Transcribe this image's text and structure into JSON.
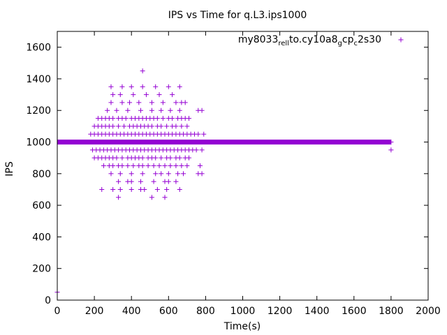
{
  "chart_data": {
    "type": "scatter",
    "title": "IPS vs Time for q.L3.ips1000",
    "xlabel": "Time(s)",
    "ylabel": "IPS",
    "xlim": [
      0,
      2000
    ],
    "ylim": [
      0,
      1700
    ],
    "x_ticks": [
      "0",
      "200",
      "400",
      "600",
      "800",
      "1000",
      "1200",
      "1400",
      "1600",
      "1800",
      "2000"
    ],
    "y_ticks": [
      "0",
      "200",
      "400",
      "600",
      "800",
      "1000",
      "1200",
      "1400",
      "1600"
    ],
    "grid": false,
    "legend_position": "top-right",
    "series": [
      {
        "name": "my8033_rel_lto.cy10a8_g cp_c 2s30",
        "legend_parts": [
          {
            "text": "my8033",
            "sub": false
          },
          {
            "text": "rel",
            "sub": true
          },
          {
            "text": "l",
            "sub": true
          },
          {
            "text": "to.cy10a8",
            "sub": false
          },
          {
            "text": "g",
            "sub": true
          },
          {
            "text": "cp",
            "sub": false
          },
          {
            "text": "c",
            "sub": true
          },
          {
            "text": "2s30",
            "sub": false
          }
        ],
        "color": "#9400d3",
        "marker": "plus",
        "baseline": {
          "x_start": 0,
          "x_end": 1800,
          "y": 1000
        },
        "points": [
          [
            0,
            50
          ],
          [
            1800,
            950
          ],
          [
            290,
            1350
          ],
          [
            350,
            1350
          ],
          [
            400,
            1350
          ],
          [
            460,
            1350
          ],
          [
            530,
            1350
          ],
          [
            600,
            1350
          ],
          [
            660,
            1350
          ],
          [
            460,
            1450
          ],
          [
            300,
            1300
          ],
          [
            340,
            1300
          ],
          [
            410,
            1300
          ],
          [
            480,
            1300
          ],
          [
            550,
            1300
          ],
          [
            620,
            1300
          ],
          [
            290,
            1250
          ],
          [
            350,
            1250
          ],
          [
            390,
            1250
          ],
          [
            440,
            1250
          ],
          [
            510,
            1250
          ],
          [
            570,
            1250
          ],
          [
            640,
            1250
          ],
          [
            670,
            1250
          ],
          [
            690,
            1250
          ],
          [
            270,
            1200
          ],
          [
            320,
            1200
          ],
          [
            380,
            1200
          ],
          [
            450,
            1200
          ],
          [
            510,
            1200
          ],
          [
            560,
            1200
          ],
          [
            610,
            1200
          ],
          [
            660,
            1200
          ],
          [
            760,
            1200
          ],
          [
            780,
            1200
          ],
          [
            220,
            1150
          ],
          [
            240,
            1150
          ],
          [
            260,
            1150
          ],
          [
            280,
            1150
          ],
          [
            300,
            1150
          ],
          [
            330,
            1150
          ],
          [
            350,
            1150
          ],
          [
            370,
            1150
          ],
          [
            400,
            1150
          ],
          [
            420,
            1150
          ],
          [
            440,
            1150
          ],
          [
            460,
            1150
          ],
          [
            480,
            1150
          ],
          [
            500,
            1150
          ],
          [
            520,
            1150
          ],
          [
            540,
            1150
          ],
          [
            570,
            1150
          ],
          [
            600,
            1150
          ],
          [
            620,
            1150
          ],
          [
            650,
            1150
          ],
          [
            670,
            1150
          ],
          [
            690,
            1150
          ],
          [
            710,
            1150
          ],
          [
            200,
            1100
          ],
          [
            220,
            1100
          ],
          [
            240,
            1100
          ],
          [
            260,
            1100
          ],
          [
            280,
            1100
          ],
          [
            300,
            1100
          ],
          [
            330,
            1100
          ],
          [
            360,
            1100
          ],
          [
            390,
            1100
          ],
          [
            410,
            1100
          ],
          [
            430,
            1100
          ],
          [
            450,
            1100
          ],
          [
            470,
            1100
          ],
          [
            490,
            1100
          ],
          [
            510,
            1100
          ],
          [
            540,
            1100
          ],
          [
            560,
            1100
          ],
          [
            590,
            1100
          ],
          [
            620,
            1100
          ],
          [
            640,
            1100
          ],
          [
            670,
            1100
          ],
          [
            700,
            1100
          ],
          [
            180,
            1050
          ],
          [
            200,
            1050
          ],
          [
            220,
            1050
          ],
          [
            240,
            1050
          ],
          [
            260,
            1050
          ],
          [
            280,
            1050
          ],
          [
            300,
            1050
          ],
          [
            320,
            1050
          ],
          [
            340,
            1050
          ],
          [
            360,
            1050
          ],
          [
            380,
            1050
          ],
          [
            400,
            1050
          ],
          [
            420,
            1050
          ],
          [
            440,
            1050
          ],
          [
            460,
            1050
          ],
          [
            480,
            1050
          ],
          [
            500,
            1050
          ],
          [
            520,
            1050
          ],
          [
            540,
            1050
          ],
          [
            560,
            1050
          ],
          [
            580,
            1050
          ],
          [
            600,
            1050
          ],
          [
            620,
            1050
          ],
          [
            640,
            1050
          ],
          [
            660,
            1050
          ],
          [
            680,
            1050
          ],
          [
            700,
            1050
          ],
          [
            720,
            1050
          ],
          [
            740,
            1050
          ],
          [
            760,
            1050
          ],
          [
            790,
            1050
          ],
          [
            190,
            950
          ],
          [
            210,
            950
          ],
          [
            230,
            950
          ],
          [
            250,
            950
          ],
          [
            270,
            950
          ],
          [
            290,
            950
          ],
          [
            310,
            950
          ],
          [
            330,
            950
          ],
          [
            350,
            950
          ],
          [
            370,
            950
          ],
          [
            390,
            950
          ],
          [
            410,
            950
          ],
          [
            430,
            950
          ],
          [
            450,
            950
          ],
          [
            470,
            950
          ],
          [
            490,
            950
          ],
          [
            510,
            950
          ],
          [
            530,
            950
          ],
          [
            550,
            950
          ],
          [
            570,
            950
          ],
          [
            590,
            950
          ],
          [
            610,
            950
          ],
          [
            630,
            950
          ],
          [
            650,
            950
          ],
          [
            670,
            950
          ],
          [
            690,
            950
          ],
          [
            710,
            950
          ],
          [
            730,
            950
          ],
          [
            750,
            950
          ],
          [
            780,
            950
          ],
          [
            200,
            900
          ],
          [
            220,
            900
          ],
          [
            240,
            900
          ],
          [
            260,
            900
          ],
          [
            280,
            900
          ],
          [
            300,
            900
          ],
          [
            320,
            900
          ],
          [
            350,
            900
          ],
          [
            380,
            900
          ],
          [
            400,
            900
          ],
          [
            420,
            900
          ],
          [
            440,
            900
          ],
          [
            460,
            900
          ],
          [
            490,
            900
          ],
          [
            510,
            900
          ],
          [
            530,
            900
          ],
          [
            560,
            900
          ],
          [
            590,
            900
          ],
          [
            610,
            900
          ],
          [
            640,
            900
          ],
          [
            660,
            900
          ],
          [
            690,
            900
          ],
          [
            710,
            900
          ],
          [
            250,
            850
          ],
          [
            280,
            850
          ],
          [
            300,
            850
          ],
          [
            330,
            850
          ],
          [
            350,
            850
          ],
          [
            380,
            850
          ],
          [
            410,
            850
          ],
          [
            440,
            850
          ],
          [
            460,
            850
          ],
          [
            490,
            850
          ],
          [
            520,
            850
          ],
          [
            550,
            850
          ],
          [
            580,
            850
          ],
          [
            610,
            850
          ],
          [
            640,
            850
          ],
          [
            670,
            850
          ],
          [
            700,
            850
          ],
          [
            770,
            850
          ],
          [
            290,
            800
          ],
          [
            340,
            800
          ],
          [
            400,
            800
          ],
          [
            460,
            800
          ],
          [
            530,
            800
          ],
          [
            560,
            800
          ],
          [
            600,
            800
          ],
          [
            650,
            800
          ],
          [
            680,
            800
          ],
          [
            760,
            800
          ],
          [
            780,
            800
          ],
          [
            330,
            750
          ],
          [
            380,
            750
          ],
          [
            400,
            750
          ],
          [
            450,
            750
          ],
          [
            520,
            750
          ],
          [
            580,
            750
          ],
          [
            600,
            750
          ],
          [
            640,
            750
          ],
          [
            240,
            700
          ],
          [
            300,
            700
          ],
          [
            340,
            700
          ],
          [
            400,
            700
          ],
          [
            450,
            700
          ],
          [
            470,
            700
          ],
          [
            540,
            700
          ],
          [
            590,
            700
          ],
          [
            660,
            700
          ],
          [
            330,
            650
          ],
          [
            510,
            650
          ],
          [
            580,
            650
          ]
        ]
      }
    ]
  }
}
